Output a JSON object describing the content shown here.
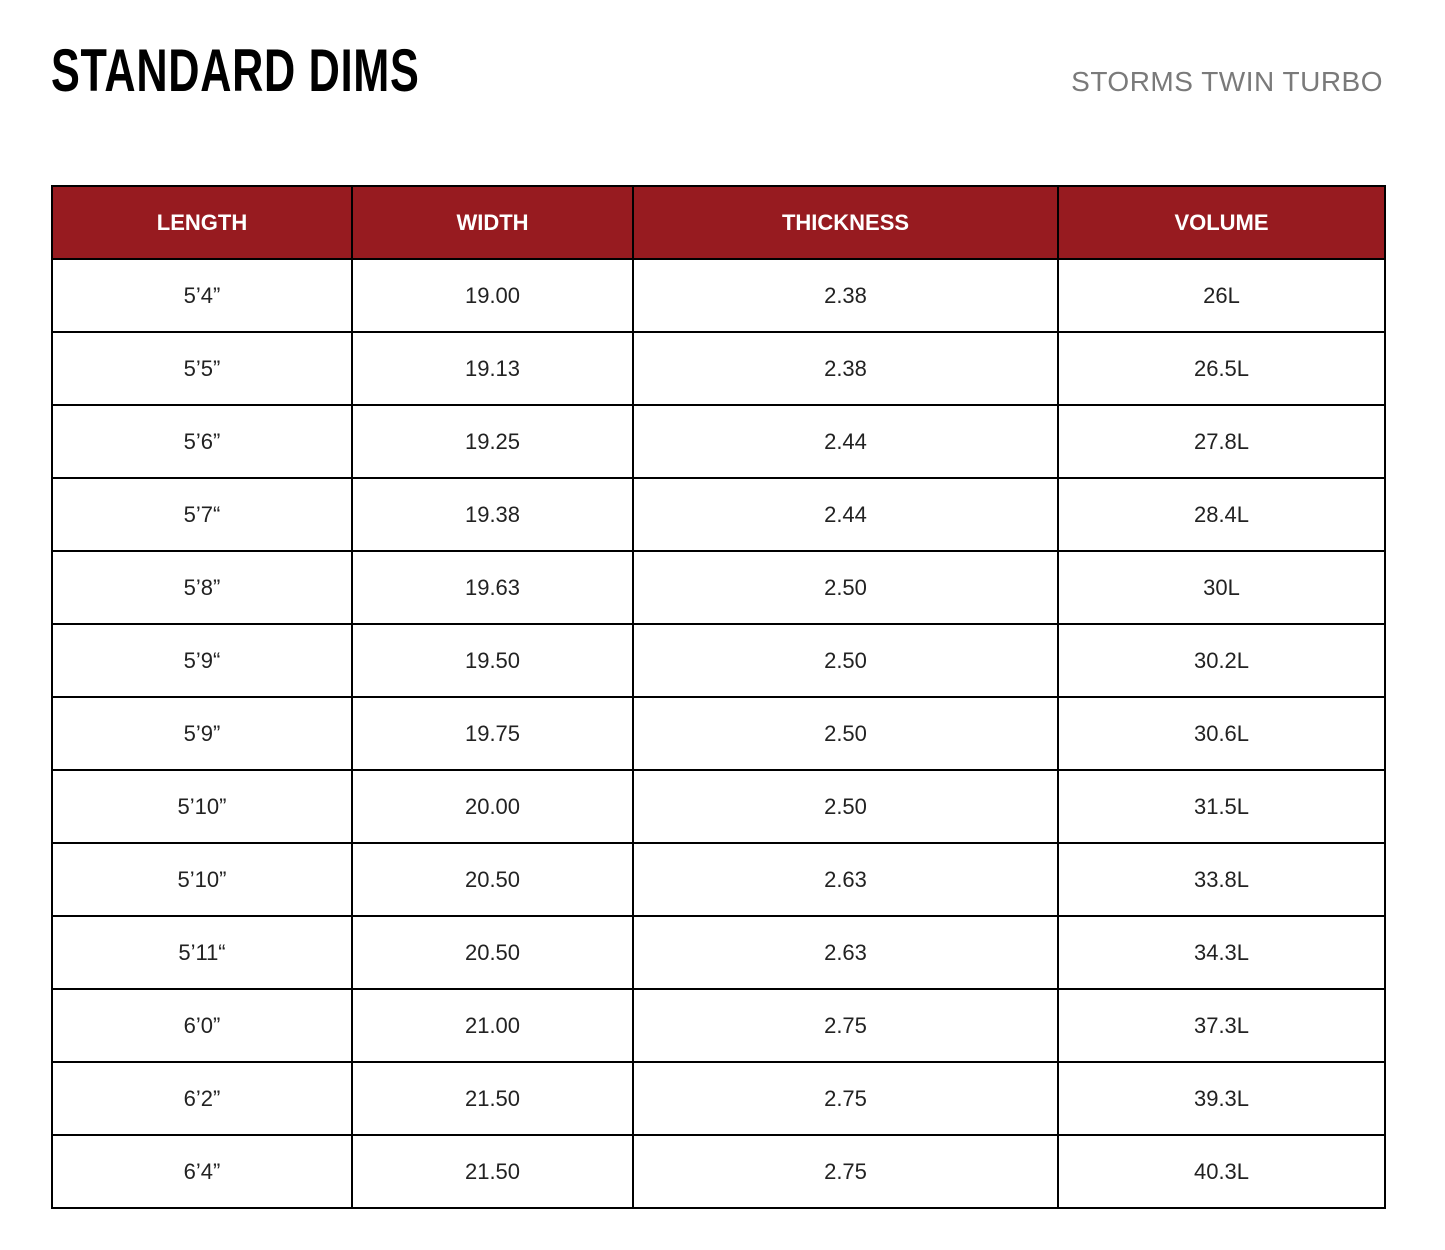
{
  "header": {
    "title": "STANDARD DIMS",
    "subtitle": "STORMS TWIN TURBO"
  },
  "colors": {
    "header_bg": "#971b20",
    "header_text": "#ffffff",
    "border": "#000000"
  },
  "table": {
    "columns": [
      "LENGTH",
      "WIDTH",
      "THICKNESS",
      "VOLUME"
    ],
    "rows": [
      [
        "5’4”",
        "19.00",
        "2.38",
        "26L"
      ],
      [
        "5’5”",
        "19.13",
        "2.38",
        "26.5L"
      ],
      [
        "5’6”",
        "19.25",
        "2.44",
        "27.8L"
      ],
      [
        "5’7“",
        "19.38",
        "2.44",
        "28.4L"
      ],
      [
        "5’8”",
        "19.63",
        "2.50",
        "30L"
      ],
      [
        "5’9“",
        "19.50",
        "2.50",
        "30.2L"
      ],
      [
        "5’9”",
        "19.75",
        "2.50",
        "30.6L"
      ],
      [
        "5’10”",
        "20.00",
        "2.50",
        "31.5L"
      ],
      [
        "5’10”",
        "20.50",
        "2.63",
        "33.8L"
      ],
      [
        "5’11“",
        "20.50",
        "2.63",
        "34.3L"
      ],
      [
        "6’0”",
        "21.00",
        "2.75",
        "37.3L"
      ],
      [
        "6’2”",
        "21.50",
        "2.75",
        "39.3L"
      ],
      [
        "6’4”",
        "21.50",
        "2.75",
        "40.3L"
      ]
    ]
  }
}
